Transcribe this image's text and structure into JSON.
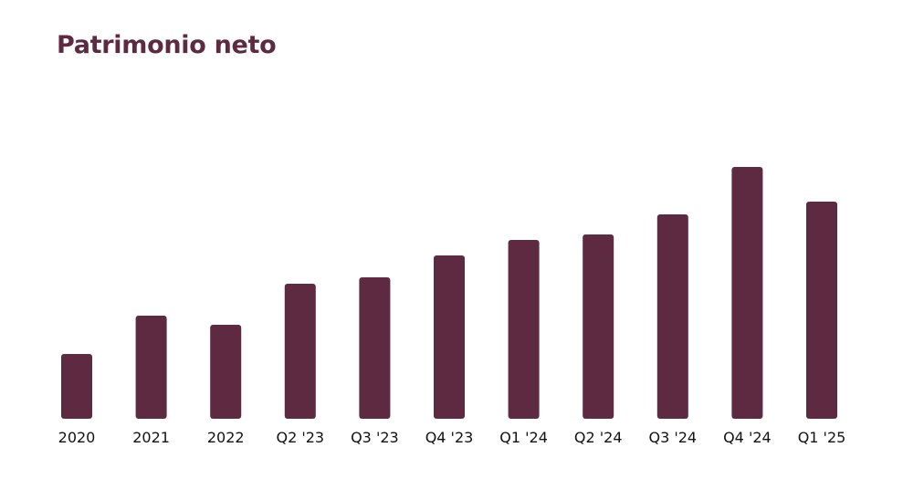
{
  "chart_data": {
    "type": "bar",
    "title": "Patrimonio neto",
    "xlabel": "",
    "ylabel": "",
    "categories": [
      "2020",
      "2021",
      "2022",
      "Q2 '23",
      "Q3 '23",
      "Q4 '23",
      "Q1 '24",
      "Q2 '24",
      "Q3 '24",
      "Q4 '24",
      "Q1 '25"
    ],
    "values": [
      71,
      113,
      103,
      148,
      155,
      179,
      196,
      202,
      224,
      276,
      238
    ],
    "ylim": [
      0,
      300
    ],
    "grid": false,
    "legend": "none"
  },
  "colors": {
    "bar": "#5e2a42",
    "title": "#5e2a42",
    "tick_label": "#111111"
  }
}
